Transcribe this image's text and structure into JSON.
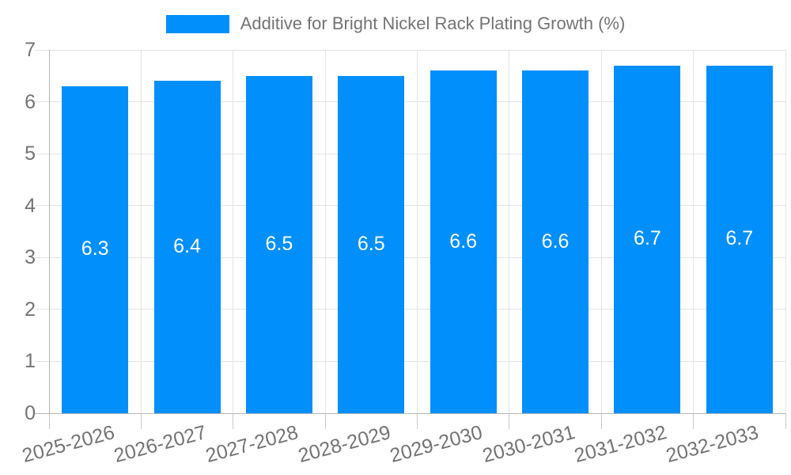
{
  "legend": {
    "label": "Additive for Bright Nickel Rack Plating Growth (%)"
  },
  "colors": {
    "bar": "#008FFB",
    "grid": "#e3e3e3",
    "axis": "#b6b6b6",
    "tick": "#c9c9c9",
    "text": "#737373",
    "value_text": "#ffffff",
    "background": "#ffffff"
  },
  "chart_data": {
    "type": "bar",
    "title": "",
    "xlabel": "",
    "ylabel": "",
    "legend_position": "top",
    "grid": true,
    "bar_color": "#008FFB",
    "x_tick_rotation_deg": -15,
    "ylim": [
      0,
      7
    ],
    "yticks": [
      0,
      1,
      2,
      3,
      4,
      5,
      6,
      7
    ],
    "categories": [
      "2025-2026",
      "2026-2027",
      "2027-2028",
      "2028-2029",
      "2029-2030",
      "2030-2031",
      "2031-2032",
      "2032-2033"
    ],
    "series": [
      {
        "name": "Additive for Bright Nickel Rack Plating Growth (%)",
        "values": [
          6.3,
          6.4,
          6.5,
          6.5,
          6.6,
          6.6,
          6.7,
          6.7
        ]
      }
    ],
    "value_labels": [
      "6.3",
      "6.4",
      "6.5",
      "6.5",
      "6.6",
      "6.6",
      "6.7",
      "6.7"
    ]
  }
}
